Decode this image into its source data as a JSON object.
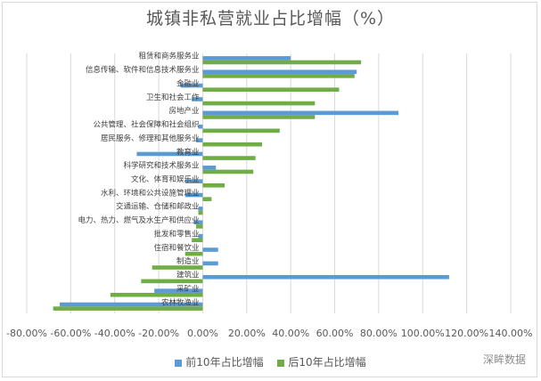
{
  "chart_data": {
    "type": "bar",
    "orientation": "horizontal",
    "title": "城镇非私营就业占比增幅（%）",
    "categories": [
      "租赁和商务服务业",
      "信息传输、软件和信息技术服务业",
      "金融业",
      "卫生和社会工作",
      "房地产业",
      "公共管理、社会保障和社会组织",
      "居民服务、修理和其他服务业",
      "教育业",
      "科学研究和技术服务业",
      "文化、体育和娱乐业",
      "水利、环境和公共设施管理业",
      "交通运输、仓储和邮政业",
      "电力、热力、燃气及水生产和供应业",
      "批发和零售业",
      "住宿和餐饮业",
      "制造业",
      "建筑业",
      "采矿业",
      "农林牧渔业"
    ],
    "series": [
      {
        "name": "前10年占比增幅",
        "color": "#5b9bd5",
        "values": [
          40,
          70,
          -10,
          -5,
          89,
          -2,
          -3,
          -30,
          6,
          -8,
          -8,
          -2,
          -4,
          -2,
          7,
          7,
          112,
          -22,
          -65
        ]
      },
      {
        "name": "后10年占比增幅",
        "color": "#70ad47",
        "values": [
          72,
          69,
          62,
          51,
          51,
          35,
          27,
          24,
          23,
          10,
          4,
          -2,
          -3,
          -5,
          -8,
          -23,
          -28,
          -42,
          -68
        ]
      }
    ],
    "xlim": [
      -80,
      140
    ],
    "xticks": [
      "-80.00%",
      "-60.00%",
      "-40.00%",
      "-20.00%",
      "0.00%",
      "20.00%",
      "40.00%",
      "60.00%",
      "80.00%",
      "100.00%",
      "120.00%",
      "140.00%"
    ],
    "grid": true,
    "legend": "bottom"
  },
  "watermark": "深眸数据"
}
